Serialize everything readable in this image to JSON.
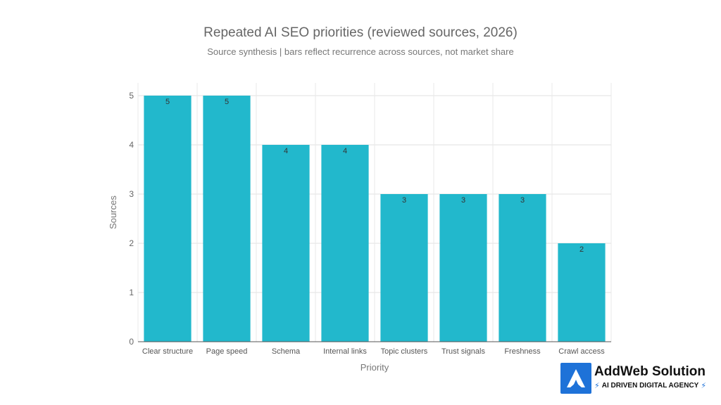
{
  "chart_data": {
    "type": "bar",
    "title": "Repeated AI SEO priorities (reviewed sources, 2026)",
    "subtitle": "Source synthesis | bars reflect recurrence across sources, not market share",
    "xlabel": "Priority",
    "ylabel": "Sources",
    "categories": [
      "Clear structure",
      "Page speed",
      "Schema",
      "Internal links",
      "Topic clusters",
      "Trust signals",
      "Freshness",
      "Crawl access"
    ],
    "values": [
      5,
      5,
      4,
      4,
      3,
      3,
      3,
      2
    ],
    "ylim": [
      0,
      5
    ],
    "yticks": [
      0,
      1,
      2,
      3,
      4,
      5
    ],
    "grid": true,
    "data_labels": true,
    "bar_color": "#22b8cc",
    "legend": "none"
  },
  "brand": {
    "name": "AddWeb Solution",
    "tagline": "AI DRIVEN DIGITAL AGENCY",
    "color": "#1e72d8"
  }
}
